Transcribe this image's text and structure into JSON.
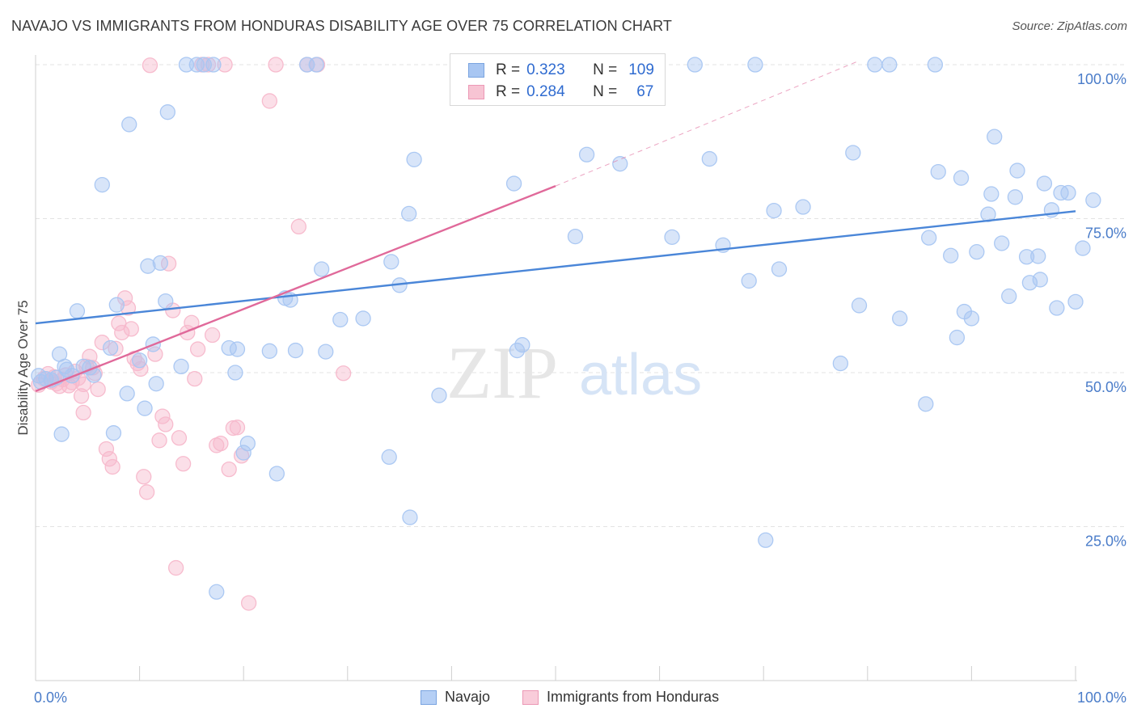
{
  "title": "NAVAJO VS IMMIGRANTS FROM HONDURAS DISABILITY AGE OVER 75 CORRELATION CHART",
  "source": "Source: ZipAtlas.com",
  "watermark": {
    "zip": "ZIP",
    "atlas": "atlas"
  },
  "legend": {
    "rows": [
      {
        "r_label": "R =",
        "r_value": "0.323",
        "n_label": "N =",
        "n_value": "109",
        "color": "#a8c6f2"
      },
      {
        "r_label": "R =",
        "r_value": "0.284",
        "n_label": "N =",
        "n_value": "67",
        "color": "#f7b8cb"
      }
    ]
  },
  "bottom_legend": [
    {
      "label": "Navajo",
      "color": "#a8c6f2"
    },
    {
      "label": "Immigrants from Honduras",
      "color": "#f7b8cb"
    }
  ],
  "chart_data": {
    "type": "scatter",
    "xlabel": "",
    "ylabel": "Disability Age Over 75",
    "xlim": [
      0,
      100
    ],
    "ylim": [
      0,
      102
    ],
    "x_tick_labels": [
      "0.0%",
      "100.0%"
    ],
    "y_tick_labels": [
      "25.0%",
      "50.0%",
      "75.0%",
      "100.0%"
    ],
    "y_ticks": [
      25,
      50,
      75,
      100
    ],
    "grid": "horizontal dashed",
    "series": [
      {
        "name": "Navajo",
        "color": "#4a86d8",
        "fill": "#a8c6f2",
        "trend": {
          "x": [
            0,
            100
          ],
          "y": [
            58.0,
            76.2
          ],
          "dashed_extension": false
        },
        "points": [
          [
            0.3,
            49.5
          ],
          [
            0.5,
            48.5
          ],
          [
            1.0,
            49.0
          ],
          [
            1.5,
            48.8
          ],
          [
            2.0,
            49.2
          ],
          [
            2.3,
            53.0
          ],
          [
            2.5,
            40.0
          ],
          [
            2.8,
            51.0
          ],
          [
            3.0,
            50.5
          ],
          [
            3.5,
            49.5
          ],
          [
            4.0,
            60.0
          ],
          [
            4.6,
            51.0
          ],
          [
            5.2,
            50.8
          ],
          [
            5.6,
            49.6
          ],
          [
            6.4,
            80.5
          ],
          [
            7.2,
            54.0
          ],
          [
            7.5,
            40.2
          ],
          [
            7.8,
            61.0
          ],
          [
            8.8,
            46.6
          ],
          [
            9.0,
            90.3
          ],
          [
            10.0,
            52.0
          ],
          [
            10.5,
            44.2
          ],
          [
            10.8,
            67.3
          ],
          [
            11.3,
            54.6
          ],
          [
            11.6,
            48.2
          ],
          [
            12.0,
            67.8
          ],
          [
            12.5,
            61.6
          ],
          [
            12.7,
            92.3
          ],
          [
            14.0,
            51.0
          ],
          [
            14.5,
            100.0
          ],
          [
            15.5,
            100.0
          ],
          [
            16.2,
            100.0
          ],
          [
            17.1,
            100.0
          ],
          [
            17.4,
            14.4
          ],
          [
            18.6,
            54.0
          ],
          [
            19.2,
            50.0
          ],
          [
            19.4,
            53.8
          ],
          [
            20.0,
            37.0
          ],
          [
            20.4,
            38.5
          ],
          [
            22.5,
            53.5
          ],
          [
            23.2,
            33.6
          ],
          [
            24.0,
            62.1
          ],
          [
            24.5,
            61.8
          ],
          [
            25.0,
            53.6
          ],
          [
            26.1,
            100.0
          ],
          [
            27.0,
            100.0
          ],
          [
            27.5,
            66.8
          ],
          [
            27.9,
            53.4
          ],
          [
            29.3,
            58.6
          ],
          [
            31.5,
            58.8
          ],
          [
            34.0,
            36.3
          ],
          [
            34.2,
            68.0
          ],
          [
            35.0,
            64.2
          ],
          [
            35.9,
            75.8
          ],
          [
            36.0,
            26.5
          ],
          [
            36.4,
            84.6
          ],
          [
            38.8,
            46.3
          ],
          [
            44.2,
            100.0
          ],
          [
            46.0,
            80.7
          ],
          [
            46.3,
            53.6
          ],
          [
            46.8,
            54.5
          ],
          [
            51.9,
            72.1
          ],
          [
            53.0,
            85.4
          ],
          [
            56.2,
            83.9
          ],
          [
            58.3,
            100.0
          ],
          [
            61.2,
            72.0
          ],
          [
            63.4,
            100.0
          ],
          [
            64.8,
            84.7
          ],
          [
            66.1,
            70.7
          ],
          [
            68.6,
            64.9
          ],
          [
            69.2,
            100.0
          ],
          [
            70.2,
            22.8
          ],
          [
            71.0,
            76.3
          ],
          [
            71.5,
            66.8
          ],
          [
            73.8,
            76.9
          ],
          [
            77.4,
            51.5
          ],
          [
            78.6,
            85.7
          ],
          [
            79.2,
            60.9
          ],
          [
            80.7,
            100.0
          ],
          [
            82.1,
            100.0
          ],
          [
            83.1,
            58.8
          ],
          [
            85.6,
            44.9
          ],
          [
            85.9,
            71.9
          ],
          [
            86.5,
            100.0
          ],
          [
            86.8,
            82.6
          ],
          [
            88.0,
            69.0
          ],
          [
            88.6,
            55.7
          ],
          [
            89.0,
            81.6
          ],
          [
            89.3,
            59.9
          ],
          [
            90.0,
            58.8
          ],
          [
            90.5,
            69.6
          ],
          [
            91.6,
            75.7
          ],
          [
            91.9,
            79.0
          ],
          [
            92.2,
            88.3
          ],
          [
            92.9,
            71.0
          ],
          [
            93.6,
            62.4
          ],
          [
            94.2,
            78.5
          ],
          [
            94.4,
            82.8
          ],
          [
            95.3,
            68.8
          ],
          [
            95.6,
            64.6
          ],
          [
            96.4,
            68.9
          ],
          [
            96.6,
            65.1
          ],
          [
            97.0,
            80.7
          ],
          [
            97.7,
            76.4
          ],
          [
            98.2,
            60.5
          ],
          [
            98.6,
            79.2
          ],
          [
            99.3,
            79.2
          ],
          [
            100.0,
            61.5
          ],
          [
            100.7,
            70.2
          ],
          [
            101.7,
            78.0
          ]
        ]
      },
      {
        "name": "Immigrants from Honduras",
        "color": "#e0699a",
        "fill": "#f7b8cb",
        "trend": {
          "x": [
            0,
            50
          ],
          "y": [
            47.0,
            80.3
          ],
          "dashed_extension": true,
          "dashed_to": [
            79,
            100.5
          ]
        },
        "points": [
          [
            0.3,
            48.0
          ],
          [
            0.8,
            49.0
          ],
          [
            1.2,
            49.8
          ],
          [
            1.5,
            48.5
          ],
          [
            1.8,
            49.3
          ],
          [
            2.0,
            48.2
          ],
          [
            2.3,
            47.8
          ],
          [
            2.6,
            48.9
          ],
          [
            2.9,
            49.6
          ],
          [
            3.2,
            47.9
          ],
          [
            3.5,
            48.4
          ],
          [
            3.8,
            50.2
          ],
          [
            4.1,
            49.1
          ],
          [
            4.4,
            46.2
          ],
          [
            4.6,
            43.5
          ],
          [
            4.9,
            51.0
          ],
          [
            5.2,
            52.6
          ],
          [
            5.5,
            50.8
          ],
          [
            5.7,
            49.9
          ],
          [
            6.0,
            47.3
          ],
          [
            6.4,
            54.9
          ],
          [
            6.8,
            37.6
          ],
          [
            7.1,
            36.0
          ],
          [
            7.4,
            34.7
          ],
          [
            7.7,
            53.9
          ],
          [
            8.0,
            58.0
          ],
          [
            8.3,
            56.5
          ],
          [
            8.6,
            62.1
          ],
          [
            8.9,
            60.5
          ],
          [
            9.2,
            57.1
          ],
          [
            9.5,
            52.3
          ],
          [
            9.8,
            51.5
          ],
          [
            10.1,
            50.6
          ],
          [
            10.4,
            33.1
          ],
          [
            10.7,
            30.6
          ],
          [
            11.0,
            99.9
          ],
          [
            11.5,
            53.0
          ],
          [
            11.9,
            39.0
          ],
          [
            12.2,
            42.9
          ],
          [
            12.5,
            41.6
          ],
          [
            12.8,
            67.7
          ],
          [
            13.2,
            60.1
          ],
          [
            13.5,
            18.3
          ],
          [
            13.8,
            39.4
          ],
          [
            14.2,
            35.2
          ],
          [
            14.6,
            56.5
          ],
          [
            15.0,
            58.1
          ],
          [
            15.3,
            49.0
          ],
          [
            15.6,
            53.8
          ],
          [
            16.0,
            100.0
          ],
          [
            16.6,
            100.0
          ],
          [
            17.0,
            56.1
          ],
          [
            17.4,
            38.2
          ],
          [
            17.8,
            38.5
          ],
          [
            18.2,
            100.0
          ],
          [
            18.6,
            34.3
          ],
          [
            19.0,
            41.0
          ],
          [
            19.4,
            41.1
          ],
          [
            19.8,
            36.5
          ],
          [
            20.5,
            12.6
          ],
          [
            22.5,
            94.1
          ],
          [
            23.1,
            100.0
          ],
          [
            25.3,
            73.7
          ],
          [
            26.1,
            100.0
          ],
          [
            27.1,
            100.0
          ],
          [
            29.6,
            49.9
          ],
          [
            4.6,
            48.1
          ]
        ]
      }
    ]
  }
}
